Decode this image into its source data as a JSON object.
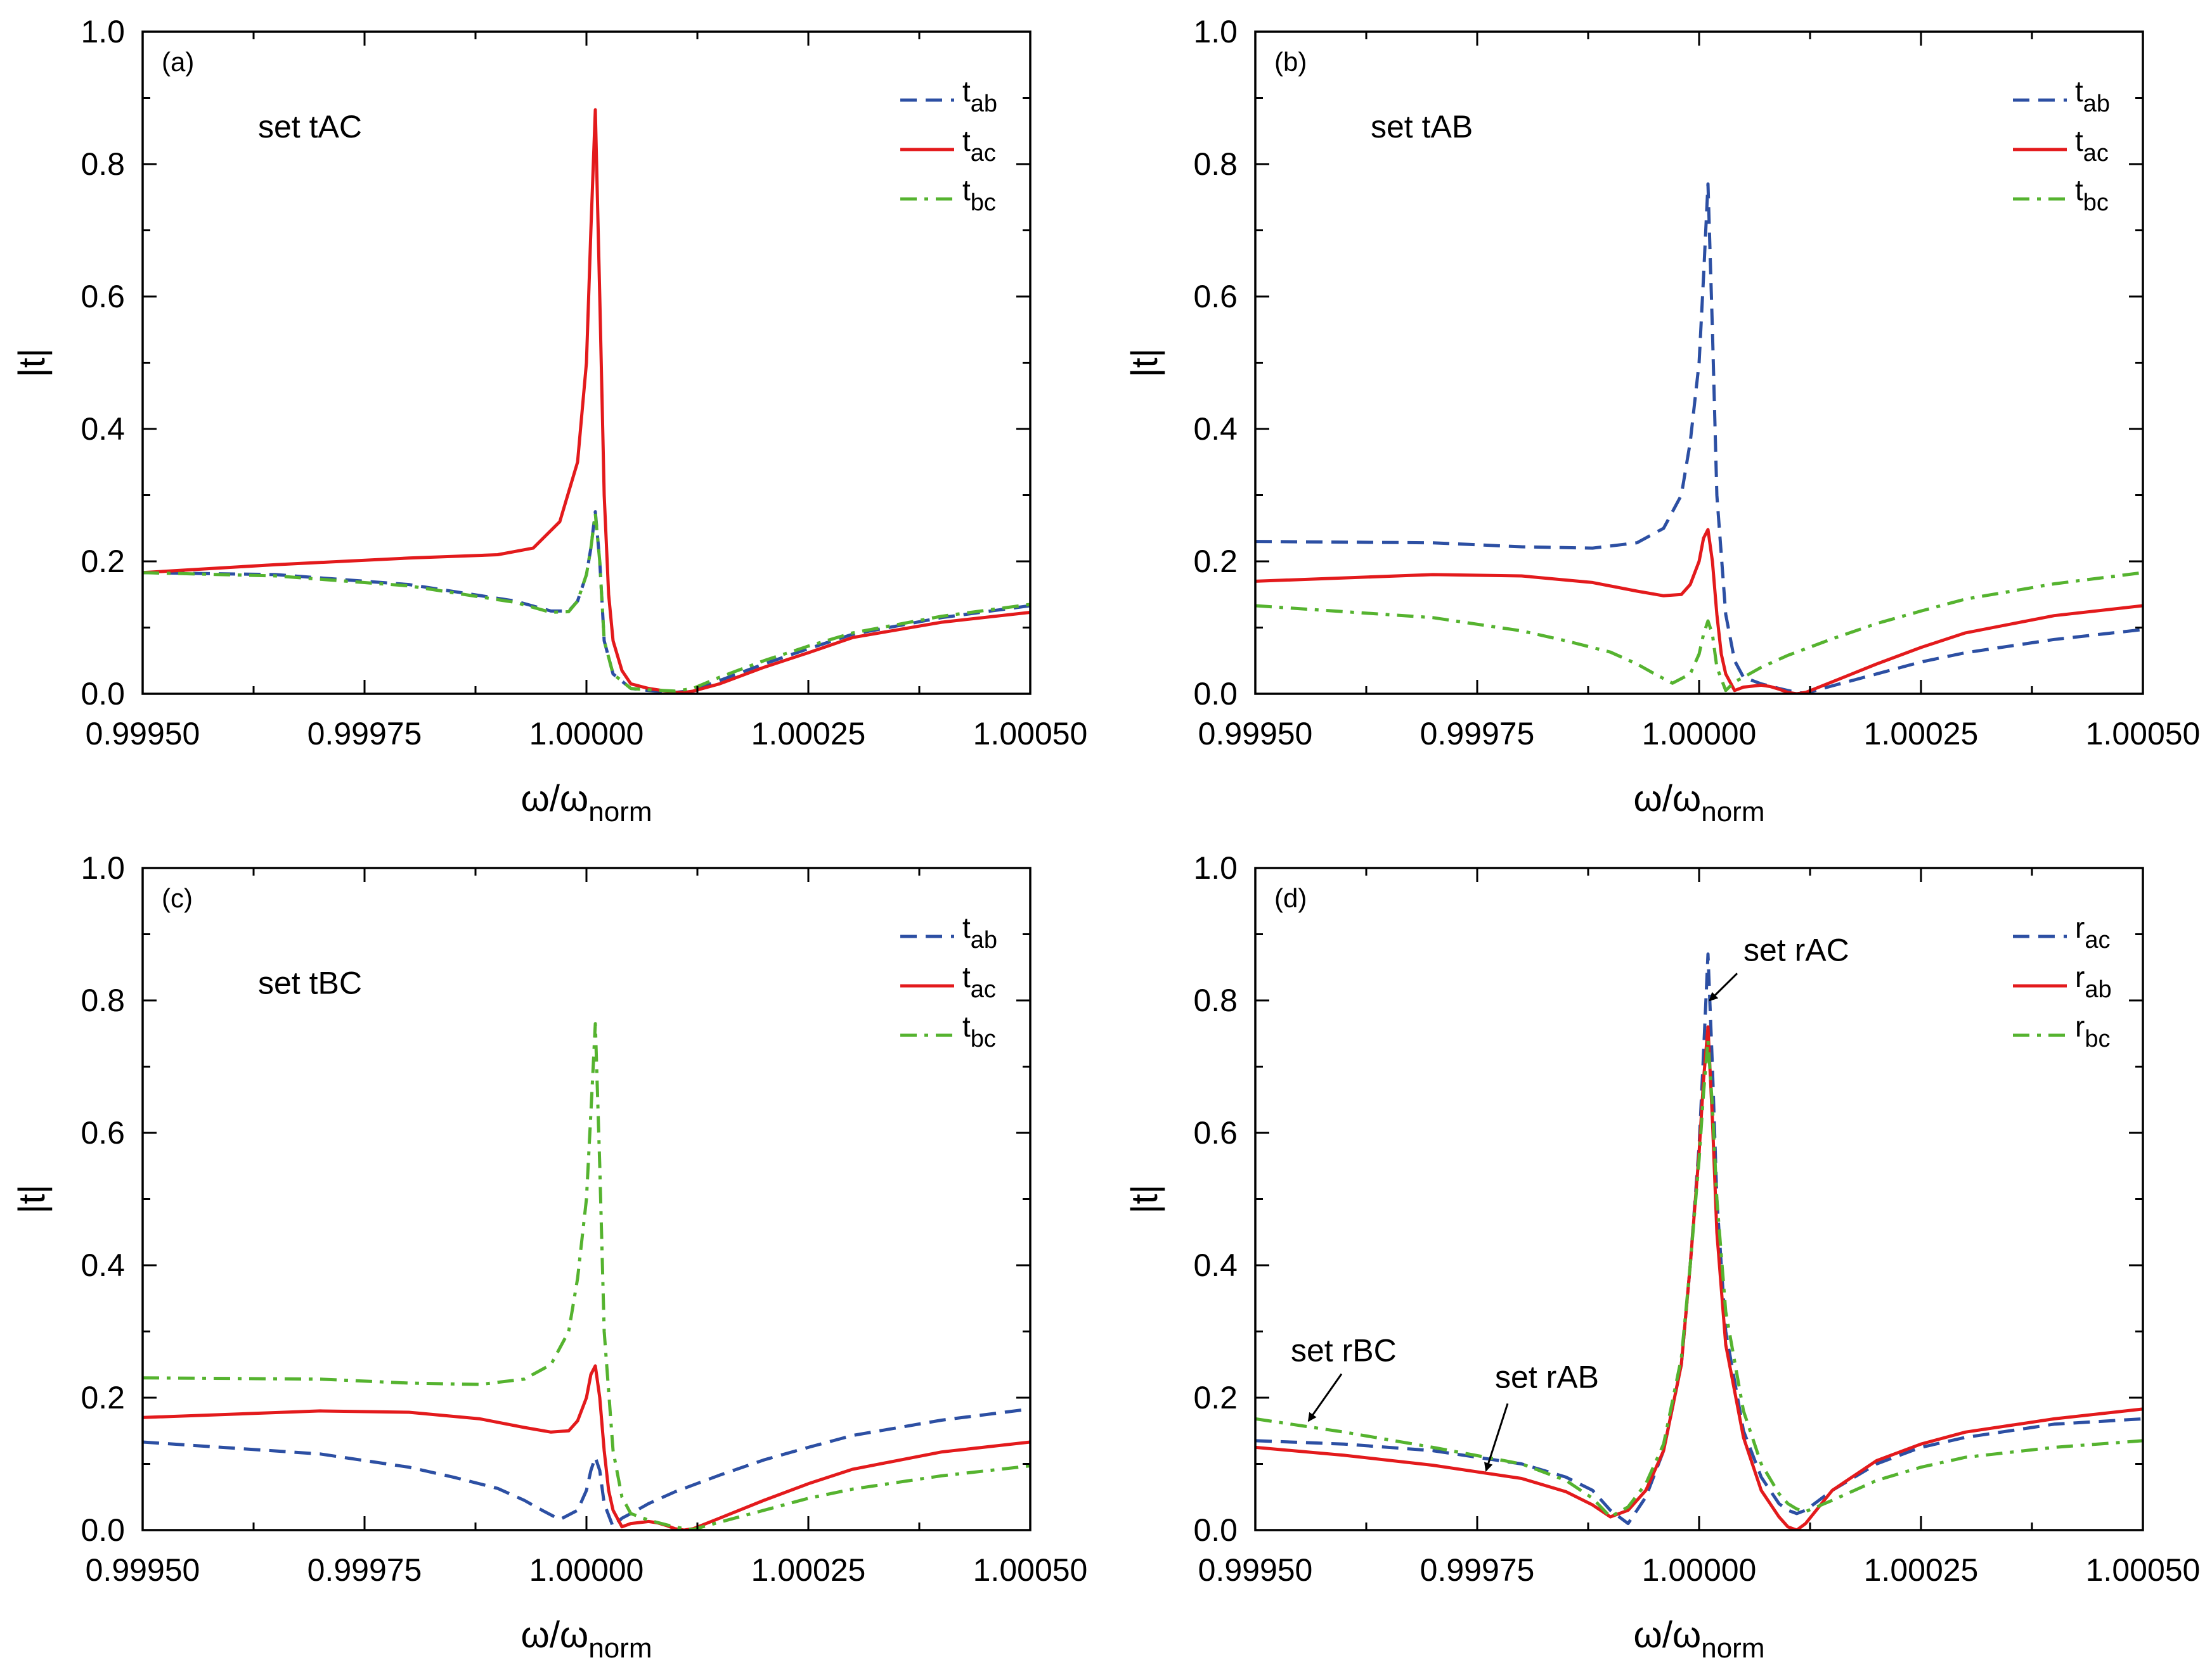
{
  "chart_data": [
    {
      "type": "line",
      "panel_label": "(a)",
      "xlabel": "ω/ω",
      "xlabel_sub": "norm",
      "ylabel": "|t|",
      "xlim": [
        0.9995,
        1.0005
      ],
      "ylim": [
        0,
        1.0
      ],
      "xticks": [
        "0.99950",
        "0.99975",
        "1.00000",
        "1.00025",
        "1.00050"
      ],
      "yticks": [
        "0.0",
        "0.2",
        "0.4",
        "0.6",
        "0.8",
        "1.0"
      ],
      "legend_position": "top-right",
      "annotations": [
        {
          "text": "set tAC",
          "x": 0.99963,
          "y": 0.84
        }
      ],
      "series": [
        {
          "name": "t",
          "sub": "ab",
          "color": "#2c4fa3",
          "dash": "dash",
          "x": [
            0.9995,
            0.99965,
            0.9998,
            0.99992,
            0.99996,
            0.99998,
            0.99999,
            1.0,
            1.000005,
            1.00001,
            1.000015,
            1.00002,
            1.00003,
            1.00005,
            1.00007,
            1.0001,
            1.00012,
            1.00015,
            1.0002,
            1.00025,
            1.0003,
            1.0004,
            1.0005
          ],
          "y": [
            0.183,
            0.18,
            0.165,
            0.14,
            0.125,
            0.125,
            0.14,
            0.18,
            0.22,
            0.275,
            0.2,
            0.08,
            0.03,
            0.008,
            0.005,
            0.002,
            0.005,
            0.02,
            0.045,
            0.068,
            0.09,
            0.115,
            0.133
          ]
        },
        {
          "name": "t",
          "sub": "ac",
          "color": "#e31a1c",
          "dash": "solid",
          "x": [
            0.9995,
            0.99965,
            0.9998,
            0.9999,
            0.99994,
            0.99997,
            0.99999,
            1.0,
            1.000005,
            1.00001,
            1.000015,
            1.00002,
            1.000025,
            1.00003,
            1.00004,
            1.00005,
            1.00007,
            1.00009,
            1.0001,
            1.00011,
            1.00012,
            1.00015,
            1.0002,
            1.00025,
            1.0003,
            1.0004,
            1.0005
          ],
          "y": [
            0.183,
            0.195,
            0.205,
            0.21,
            0.22,
            0.26,
            0.35,
            0.5,
            0.7,
            0.882,
            0.6,
            0.3,
            0.15,
            0.08,
            0.035,
            0.015,
            0.008,
            0.004,
            0.002,
            0.002,
            0.004,
            0.015,
            0.04,
            0.062,
            0.085,
            0.108,
            0.123
          ]
        },
        {
          "name": "t",
          "sub": "bc",
          "color": "#55b32f",
          "dash": "dashdot",
          "x": [
            0.9995,
            0.99965,
            0.9998,
            0.99992,
            0.99996,
            0.99998,
            0.99999,
            1.0,
            1.000005,
            1.00001,
            1.000015,
            1.00002,
            1.00003,
            1.00005,
            1.00007,
            1.0001,
            1.00012,
            1.00015,
            1.0002,
            1.00025,
            1.0003,
            1.0004,
            1.0005
          ],
          "y": [
            0.183,
            0.178,
            0.163,
            0.138,
            0.123,
            0.124,
            0.14,
            0.18,
            0.22,
            0.272,
            0.2,
            0.08,
            0.03,
            0.008,
            0.006,
            0.004,
            0.008,
            0.025,
            0.05,
            0.072,
            0.092,
            0.117,
            0.135
          ]
        }
      ]
    },
    {
      "type": "line",
      "panel_label": "(b)",
      "xlabel": "ω/ω",
      "xlabel_sub": "norm",
      "ylabel": "|t|",
      "xlim": [
        0.9995,
        1.0005
      ],
      "ylim": [
        0,
        1.0
      ],
      "xticks": [
        "0.99950",
        "0.99975",
        "1.00000",
        "1.00025",
        "1.00050"
      ],
      "yticks": [
        "0.0",
        "0.2",
        "0.4",
        "0.6",
        "0.8",
        "1.0"
      ],
      "legend_position": "top-right",
      "annotations": [
        {
          "text": "set tAB",
          "x": 0.99963,
          "y": 0.84
        }
      ],
      "series": [
        {
          "name": "t",
          "sub": "ab",
          "color": "#2c4fa3",
          "dash": "dash",
          "x": [
            0.9995,
            0.9997,
            0.9998,
            0.99988,
            0.99993,
            0.99996,
            0.99998,
            0.99999,
            1.0,
            1.000005,
            1.00001,
            1.000015,
            1.00002,
            1.00003,
            1.00004,
            1.00005,
            1.00007,
            1.00009,
            1.0001,
            1.00011,
            1.00012,
            1.00015,
            1.0002,
            1.00025,
            1.0003,
            1.0004,
            1.0005
          ],
          "y": [
            0.23,
            0.228,
            0.222,
            0.22,
            0.228,
            0.25,
            0.3,
            0.38,
            0.5,
            0.63,
            0.77,
            0.55,
            0.3,
            0.12,
            0.05,
            0.025,
            0.015,
            0.008,
            0.005,
            0.002,
            0.001,
            0.012,
            0.03,
            0.048,
            0.062,
            0.082,
            0.097
          ]
        },
        {
          "name": "t",
          "sub": "ac",
          "color": "#e31a1c",
          "dash": "solid",
          "x": [
            0.9995,
            0.9997,
            0.9998,
            0.99988,
            0.99993,
            0.99996,
            0.99998,
            0.99999,
            1.0,
            1.000005,
            1.00001,
            1.000015,
            1.00002,
            1.000025,
            1.00003,
            1.00004,
            1.00005,
            1.00007,
            1.00008,
            1.00009,
            1.0001,
            1.00011,
            1.00012,
            1.00015,
            1.0002,
            1.00025,
            1.0003,
            1.0004,
            1.0005
          ],
          "y": [
            0.17,
            0.18,
            0.178,
            0.168,
            0.155,
            0.148,
            0.15,
            0.165,
            0.2,
            0.235,
            0.248,
            0.2,
            0.12,
            0.06,
            0.03,
            0.005,
            0.01,
            0.013,
            0.011,
            0.007,
            0.002,
            0.0,
            0.002,
            0.018,
            0.045,
            0.07,
            0.092,
            0.118,
            0.133
          ]
        },
        {
          "name": "t",
          "sub": "bc",
          "color": "#55b32f",
          "dash": "dashdot",
          "x": [
            0.9995,
            0.9997,
            0.9998,
            0.99985,
            0.9999,
            0.99993,
            0.99995,
            0.99997,
            0.99999,
            1.0,
            1.000005,
            1.00001,
            1.000015,
            1.00002,
            1.00003,
            1.00004,
            1.00005,
            1.00007,
            1.0001,
            1.00015,
            1.0002,
            1.00025,
            1.0003,
            1.0004,
            1.0005
          ],
          "y": [
            0.133,
            0.115,
            0.095,
            0.08,
            0.063,
            0.045,
            0.03,
            0.016,
            0.03,
            0.06,
            0.09,
            0.11,
            0.09,
            0.04,
            0.005,
            0.018,
            0.025,
            0.04,
            0.058,
            0.083,
            0.106,
            0.125,
            0.143,
            0.166,
            0.183
          ]
        }
      ]
    },
    {
      "type": "line",
      "panel_label": "(c)",
      "xlabel": "ω/ω",
      "xlabel_sub": "norm",
      "ylabel": "|t|",
      "xlim": [
        0.9995,
        1.0005
      ],
      "ylim": [
        0,
        1.0
      ],
      "xticks": [
        "0.99950",
        "0.99975",
        "1.00000",
        "1.00025",
        "1.00050"
      ],
      "yticks": [
        "0.0",
        "0.2",
        "0.4",
        "0.6",
        "0.8",
        "1.0"
      ],
      "legend_position": "top-right",
      "annotations": [
        {
          "text": "set tBC",
          "x": 0.99963,
          "y": 0.81
        }
      ],
      "series": [
        {
          "name": "t",
          "sub": "ab",
          "color": "#2c4fa3",
          "dash": "dash",
          "x": [
            0.9995,
            0.9997,
            0.9998,
            0.99985,
            0.9999,
            0.99993,
            0.99995,
            0.99997,
            0.99999,
            1.0,
            1.000005,
            1.00001,
            1.000015,
            1.00002,
            1.00003,
            1.00004,
            1.00005,
            1.00007,
            1.0001,
            1.00015,
            1.0002,
            1.00025,
            1.0003,
            1.0004,
            1.0005
          ],
          "y": [
            0.133,
            0.115,
            0.095,
            0.08,
            0.063,
            0.045,
            0.03,
            0.016,
            0.03,
            0.06,
            0.09,
            0.11,
            0.09,
            0.04,
            0.005,
            0.018,
            0.025,
            0.04,
            0.058,
            0.083,
            0.106,
            0.125,
            0.143,
            0.166,
            0.183
          ]
        },
        {
          "name": "t",
          "sub": "ac",
          "color": "#e31a1c",
          "dash": "solid",
          "x": [
            0.9995,
            0.9997,
            0.9998,
            0.99988,
            0.99993,
            0.99996,
            0.99998,
            0.99999,
            1.0,
            1.000005,
            1.00001,
            1.000015,
            1.00002,
            1.000025,
            1.00003,
            1.00004,
            1.00005,
            1.00007,
            1.00008,
            1.00009,
            1.0001,
            1.00011,
            1.00012,
            1.00015,
            1.0002,
            1.00025,
            1.0003,
            1.0004,
            1.0005
          ],
          "y": [
            0.17,
            0.18,
            0.178,
            0.168,
            0.155,
            0.148,
            0.15,
            0.165,
            0.2,
            0.235,
            0.248,
            0.2,
            0.12,
            0.06,
            0.03,
            0.005,
            0.01,
            0.013,
            0.011,
            0.007,
            0.002,
            0.0,
            0.002,
            0.018,
            0.045,
            0.07,
            0.092,
            0.118,
            0.133
          ]
        },
        {
          "name": "t",
          "sub": "bc",
          "color": "#55b32f",
          "dash": "dashdot",
          "x": [
            0.9995,
            0.9997,
            0.9998,
            0.99988,
            0.99993,
            0.99996,
            0.99998,
            0.99999,
            1.0,
            1.000005,
            1.00001,
            1.000015,
            1.00002,
            1.00003,
            1.00004,
            1.00005,
            1.00007,
            1.00009,
            1.0001,
            1.00011,
            1.00012,
            1.00015,
            1.0002,
            1.00025,
            1.0003,
            1.0004,
            1.0005
          ],
          "y": [
            0.23,
            0.228,
            0.222,
            0.22,
            0.228,
            0.25,
            0.3,
            0.38,
            0.5,
            0.63,
            0.765,
            0.55,
            0.3,
            0.12,
            0.05,
            0.025,
            0.015,
            0.008,
            0.005,
            0.002,
            0.001,
            0.012,
            0.03,
            0.048,
            0.062,
            0.082,
            0.097
          ]
        }
      ]
    },
    {
      "type": "line",
      "panel_label": "(d)",
      "xlabel": "ω/ω",
      "xlabel_sub": "norm",
      "ylabel": "|t|",
      "xlim": [
        0.9995,
        1.0005
      ],
      "ylim": [
        0,
        1.0
      ],
      "xticks": [
        "0.99950",
        "0.99975",
        "1.00000",
        "1.00025",
        "1.00050"
      ],
      "yticks": [
        "0.0",
        "0.2",
        "0.4",
        "0.6",
        "0.8",
        "1.0"
      ],
      "legend_position": "top-right",
      "annotations": [
        {
          "text": "set rAC",
          "x": 1.00005,
          "y": 0.86,
          "arrow_to": [
            1.000012,
            0.8
          ]
        },
        {
          "text": "set rBC",
          "x": 0.99954,
          "y": 0.255,
          "arrow_to": [
            0.99956,
            0.165
          ]
        },
        {
          "text": "set rAB",
          "x": 0.99977,
          "y": 0.215,
          "arrow_to": [
            0.99976,
            0.09
          ]
        }
      ],
      "series": [
        {
          "name": "r",
          "sub": "ac",
          "color": "#2c4fa3",
          "dash": "dash",
          "x": [
            0.9995,
            0.9996,
            0.9997,
            0.9998,
            0.99985,
            0.99988,
            0.9999,
            0.99992,
            0.99994,
            0.99996,
            0.99998,
            0.99999,
            1.0,
            1.000005,
            1.00001,
            1.000015,
            1.00002,
            1.00003,
            1.00005,
            1.00007,
            1.00009,
            1.0001,
            1.00011,
            1.00012,
            1.00015,
            1.0002,
            1.00025,
            1.0003,
            1.0004,
            1.0005
          ],
          "y": [
            0.135,
            0.13,
            0.12,
            0.1,
            0.08,
            0.06,
            0.03,
            0.01,
            0.05,
            0.12,
            0.25,
            0.4,
            0.58,
            0.72,
            0.87,
            0.7,
            0.5,
            0.3,
            0.15,
            0.08,
            0.04,
            0.03,
            0.025,
            0.03,
            0.06,
            0.1,
            0.125,
            0.14,
            0.16,
            0.168
          ]
        },
        {
          "name": "r",
          "sub": "ab",
          "color": "#e31a1c",
          "dash": "solid",
          "x": [
            0.9995,
            0.9996,
            0.9997,
            0.9998,
            0.99985,
            0.99988,
            0.9999,
            0.99992,
            0.99994,
            0.99996,
            0.99998,
            0.99999,
            1.0,
            1.000005,
            1.00001,
            1.000015,
            1.00002,
            1.00003,
            1.00005,
            1.00007,
            1.00009,
            1.0001,
            1.00011,
            1.00012,
            1.00015,
            1.0002,
            1.00025,
            1.0003,
            1.0004,
            1.0005
          ],
          "y": [
            0.125,
            0.113,
            0.098,
            0.078,
            0.058,
            0.038,
            0.02,
            0.03,
            0.06,
            0.12,
            0.25,
            0.4,
            0.57,
            0.68,
            0.76,
            0.62,
            0.45,
            0.28,
            0.14,
            0.06,
            0.02,
            0.005,
            0.0,
            0.01,
            0.06,
            0.105,
            0.13,
            0.148,
            0.168,
            0.183
          ]
        },
        {
          "name": "r",
          "sub": "bc",
          "color": "#55b32f",
          "dash": "dashdot",
          "x": [
            0.9995,
            0.9996,
            0.9997,
            0.9998,
            0.99985,
            0.99988,
            0.9999,
            0.99992,
            0.99994,
            0.99996,
            0.99998,
            0.99999,
            1.0,
            1.000005,
            1.00001,
            1.000015,
            1.00002,
            1.00003,
            1.00005,
            1.00007,
            1.00009,
            1.0001,
            1.00011,
            1.00012,
            1.00015,
            1.0002,
            1.00025,
            1.0003,
            1.0004,
            1.0005
          ],
          "y": [
            0.168,
            0.148,
            0.125,
            0.1,
            0.075,
            0.048,
            0.02,
            0.035,
            0.07,
            0.13,
            0.26,
            0.4,
            0.56,
            0.66,
            0.74,
            0.64,
            0.5,
            0.33,
            0.18,
            0.1,
            0.055,
            0.04,
            0.032,
            0.028,
            0.045,
            0.075,
            0.095,
            0.11,
            0.125,
            0.135
          ]
        }
      ]
    }
  ]
}
